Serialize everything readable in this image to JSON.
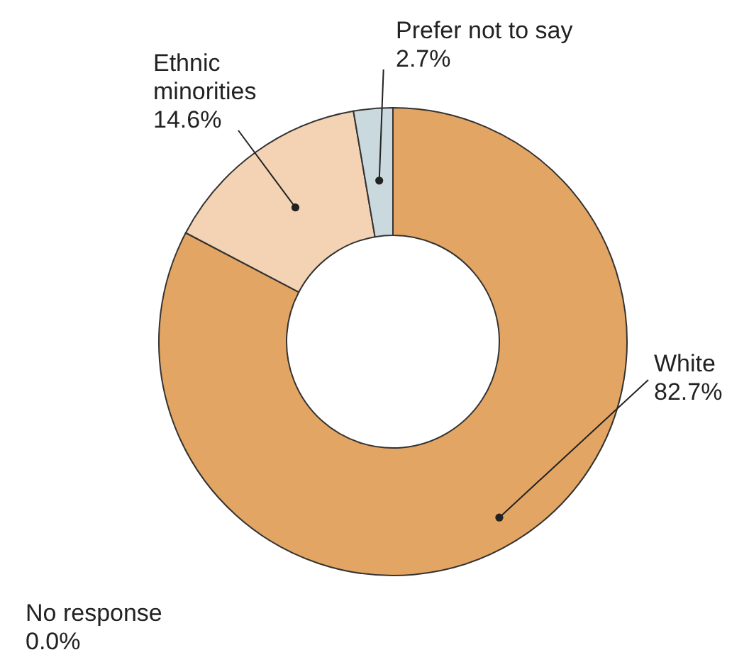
{
  "chart_data": {
    "type": "donut",
    "categories": [
      "White",
      "Ethnic minorities",
      "Prefer not to say",
      "No response"
    ],
    "values": [
      82.7,
      14.6,
      2.7,
      0.0
    ],
    "value_labels": [
      "82.7%",
      "14.6%",
      "2.7%",
      "0.0%"
    ],
    "colors": [
      "#e3a563",
      "#f3d3b3",
      "#c9d9de",
      "#9aa9b0"
    ]
  }
}
